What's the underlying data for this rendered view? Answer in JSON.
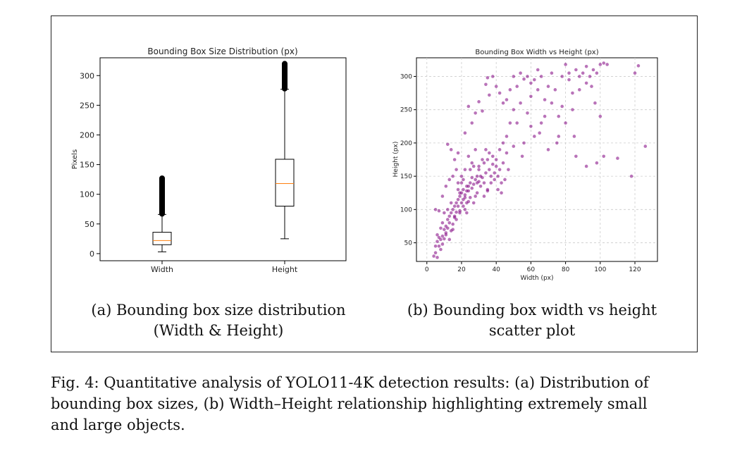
{
  "chart_data": [
    {
      "type": "boxplot",
      "title": "Bounding Box Size Distribution (px)",
      "ylabel": "Pixels",
      "xlabel": "",
      "ylim": [
        -12,
        330
      ],
      "yticks": [
        0,
        50,
        100,
        150,
        200,
        250,
        300
      ],
      "categories": [
        "Width",
        "Height"
      ],
      "series": [
        {
          "category": "Width",
          "whisker_low": 3,
          "q1": 15,
          "median": 22,
          "q3": 36,
          "whisker_high": 66,
          "outlier_min": 67,
          "outlier_max": 127
        },
        {
          "category": "Height",
          "whisker_low": 25,
          "q1": 80,
          "median": 118,
          "q3": 159,
          "whisker_high": 277,
          "outlier_min": 278,
          "outlier_max": 320
        }
      ],
      "colors": {
        "box": "#000000",
        "median": "#ff7f0e"
      },
      "grid": false
    },
    {
      "type": "scatter",
      "title": "Bounding Box Width vs Height (px)",
      "xlabel": "Width (px)",
      "ylabel": "Height (px)",
      "xlim": [
        -6,
        133
      ],
      "ylim": [
        22,
        328
      ],
      "xticks": [
        0,
        20,
        40,
        60,
        80,
        100,
        120
      ],
      "yticks": [
        50,
        100,
        150,
        200,
        250,
        300
      ],
      "grid": true,
      "point_color": "#800080",
      "points": [
        [
          4,
          30
        ],
        [
          5,
          35
        ],
        [
          6,
          28
        ],
        [
          7,
          45
        ],
        [
          8,
          55
        ],
        [
          9,
          60
        ],
        [
          10,
          70
        ],
        [
          11,
          75
        ],
        [
          12,
          85
        ],
        [
          13,
          90
        ],
        [
          14,
          95
        ],
        [
          15,
          100
        ],
        [
          16,
          105
        ],
        [
          17,
          110
        ],
        [
          18,
          115
        ],
        [
          19,
          120
        ],
        [
          20,
          125
        ],
        [
          21,
          130
        ],
        [
          22,
          118
        ],
        [
          23,
          135
        ],
        [
          24,
          128
        ],
        [
          25,
          140
        ],
        [
          26,
          132
        ],
        [
          27,
          138
        ],
        [
          28,
          145
        ],
        [
          29,
          150
        ],
        [
          30,
          142
        ],
        [
          32,
          148
        ],
        [
          34,
          155
        ],
        [
          36,
          160
        ],
        [
          6,
          62
        ],
        [
          8,
          72
        ],
        [
          10,
          95
        ],
        [
          12,
          100
        ],
        [
          14,
          110
        ],
        [
          16,
          90
        ],
        [
          18,
          130
        ],
        [
          20,
          140
        ],
        [
          22,
          100
        ],
        [
          24,
          112
        ],
        [
          26,
          148
        ],
        [
          28,
          120
        ],
        [
          30,
          160
        ],
        [
          33,
          170
        ],
        [
          35,
          175
        ],
        [
          38,
          180
        ],
        [
          40,
          165
        ],
        [
          42,
          190
        ],
        [
          44,
          200
        ],
        [
          46,
          210
        ],
        [
          5,
          100
        ],
        [
          7,
          98
        ],
        [
          9,
          80
        ],
        [
          11,
          62
        ],
        [
          13,
          55
        ],
        [
          15,
          70
        ],
        [
          17,
          85
        ],
        [
          19,
          95
        ],
        [
          21,
          105
        ],
        [
          23,
          95
        ],
        [
          25,
          118
        ],
        [
          27,
          110
        ],
        [
          29,
          125
        ],
        [
          31,
          135
        ],
        [
          33,
          140
        ],
        [
          35,
          128
        ],
        [
          37,
          150
        ],
        [
          39,
          145
        ],
        [
          41,
          150
        ],
        [
          43,
          140
        ],
        [
          12,
          198
        ],
        [
          14,
          190
        ],
        [
          16,
          175
        ],
        [
          18,
          185
        ],
        [
          22,
          215
        ],
        [
          24,
          255
        ],
        [
          26,
          230
        ],
        [
          28,
          245
        ],
        [
          30,
          262
        ],
        [
          32,
          248
        ],
        [
          34,
          288
        ],
        [
          35,
          298
        ],
        [
          36,
          272
        ],
        [
          38,
          300
        ],
        [
          40,
          285
        ],
        [
          42,
          275
        ],
        [
          44,
          260
        ],
        [
          46,
          265
        ],
        [
          48,
          280
        ],
        [
          50,
          300
        ],
        [
          50,
          250
        ],
        [
          52,
          230
        ],
        [
          54,
          305
        ],
        [
          56,
          296
        ],
        [
          58,
          245
        ],
        [
          60,
          270
        ],
        [
          62,
          295
        ],
        [
          64,
          310
        ],
        [
          66,
          300
        ],
        [
          68,
          265
        ],
        [
          70,
          285
        ],
        [
          72,
          305
        ],
        [
          74,
          280
        ],
        [
          76,
          240
        ],
        [
          78,
          300
        ],
        [
          80,
          318
        ],
        [
          82,
          295
        ],
        [
          84,
          275
        ],
        [
          86,
          310
        ],
        [
          88,
          300
        ],
        [
          90,
          305
        ],
        [
          92,
          315
        ],
        [
          94,
          300
        ],
        [
          96,
          310
        ],
        [
          98,
          305
        ],
        [
          100,
          318
        ],
        [
          102,
          320
        ],
        [
          104,
          318
        ],
        [
          120,
          305
        ],
        [
          122,
          316
        ],
        [
          126,
          195
        ],
        [
          118,
          150
        ],
        [
          110,
          177
        ],
        [
          102,
          180
        ],
        [
          98,
          170
        ],
        [
          92,
          165
        ],
        [
          85,
          210
        ],
        [
          80,
          230
        ],
        [
          75,
          200
        ],
        [
          70,
          190
        ],
        [
          65,
          215
        ],
        [
          60,
          225
        ],
        [
          55,
          180
        ],
        [
          50,
          195
        ],
        [
          48,
          230
        ],
        [
          46,
          185
        ],
        [
          44,
          170
        ],
        [
          42,
          160
        ],
        [
          40,
          175
        ],
        [
          38,
          168
        ],
        [
          36,
          185
        ],
        [
          34,
          190
        ],
        [
          32,
          175
        ],
        [
          30,
          165
        ],
        [
          28,
          190
        ],
        [
          26,
          170
        ],
        [
          24,
          180
        ],
        [
          22,
          160
        ],
        [
          20,
          150
        ],
        [
          18,
          140
        ],
        [
          5,
          45
        ],
        [
          6,
          52
        ],
        [
          7,
          58
        ],
        [
          8,
          40
        ],
        [
          9,
          48
        ],
        [
          10,
          56
        ],
        [
          11,
          65
        ],
        [
          12,
          72
        ],
        [
          13,
          80
        ],
        [
          14,
          68
        ],
        [
          15,
          78
        ],
        [
          16,
          88
        ],
        [
          17,
          96
        ],
        [
          18,
          105
        ],
        [
          19,
          98
        ],
        [
          20,
          110
        ],
        [
          21,
          115
        ],
        [
          22,
          122
        ],
        [
          23,
          128
        ],
        [
          24,
          135
        ],
        [
          9,
          120
        ],
        [
          11,
          135
        ],
        [
          13,
          145
        ],
        [
          15,
          150
        ],
        [
          17,
          160
        ],
        [
          19,
          125
        ],
        [
          21,
          145
        ],
        [
          23,
          110
        ],
        [
          25,
          160
        ],
        [
          27,
          165
        ],
        [
          29,
          140
        ],
        [
          31,
          150
        ],
        [
          33,
          120
        ],
        [
          35,
          130
        ],
        [
          37,
          140
        ],
        [
          39,
          155
        ],
        [
          41,
          130
        ],
        [
          43,
          125
        ],
        [
          45,
          145
        ],
        [
          47,
          160
        ],
        [
          52,
          285
        ],
        [
          58,
          300
        ],
        [
          64,
          280
        ],
        [
          66,
          230
        ],
        [
          72,
          260
        ],
        [
          78,
          255
        ],
        [
          84,
          250
        ],
        [
          88,
          280
        ],
        [
          92,
          290
        ],
        [
          95,
          285
        ],
        [
          97,
          260
        ],
        [
          100,
          240
        ],
        [
          86,
          180
        ],
        [
          76,
          210
        ],
        [
          68,
          240
        ],
        [
          62,
          210
        ],
        [
          56,
          200
        ],
        [
          54,
          260
        ],
        [
          60,
          290
        ],
        [
          82,
          305
        ]
      ]
    }
  ],
  "captions": {
    "left": [
      "(a) Bounding box size distribution",
      "(Width & Height)"
    ],
    "right": [
      "(b) Bounding box width vs height",
      "scatter plot"
    ],
    "figure": [
      "Fig. 4: Quantitative analysis of YOLO11-4K detection results: (a) Distribution of",
      "bounding box sizes, (b) Width–Height relationship highlighting extremely small",
      "and large objects."
    ]
  }
}
